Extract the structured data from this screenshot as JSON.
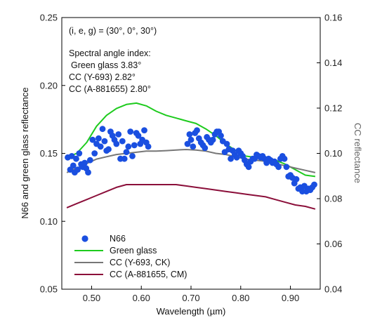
{
  "chart_data": {
    "type": "line",
    "xlabel": "Wavelength (µm)",
    "ylabel": "N66 and green glass reflectance",
    "y2label": "CC reflectance",
    "xlim": [
      0.44,
      0.96
    ],
    "ylim": [
      0.05,
      0.25
    ],
    "y2lim": [
      0.04,
      0.16
    ],
    "xticks": [
      "0.50",
      "0.60",
      "0.70",
      "0.80",
      "0.90"
    ],
    "yticks": [
      "0.05",
      "0.10",
      "0.15",
      "0.20",
      "0.25"
    ],
    "y2ticks": [
      "0.04",
      "0.06",
      "0.08",
      "0.10",
      "0.12",
      "0.14",
      "0.16"
    ],
    "grid": false,
    "legend_position": "bottom-left",
    "annotation": {
      "geometry": "(i, e, g) = (30°, 0°, 30°)",
      "title": "Spectral angle index:",
      "lines": [
        "Green glass 3.83°",
        "CC (Y-693) 2.82°",
        "CC (A-881655) 2.80°"
      ]
    },
    "series": [
      {
        "name": "N66",
        "kind": "scatter",
        "axis": "left",
        "color": "#1a4fe0",
        "points": [
          [
            0.452,
            0.147
          ],
          [
            0.457,
            0.138
          ],
          [
            0.46,
            0.148
          ],
          [
            0.463,
            0.141
          ],
          [
            0.466,
            0.136
          ],
          [
            0.469,
            0.146
          ],
          [
            0.472,
            0.138
          ],
          [
            0.475,
            0.15
          ],
          [
            0.479,
            0.142
          ],
          [
            0.482,
            0.14
          ],
          [
            0.486,
            0.143
          ],
          [
            0.489,
            0.139
          ],
          [
            0.493,
            0.136
          ],
          [
            0.497,
            0.145
          ],
          [
            0.502,
            0.16
          ],
          [
            0.506,
            0.15
          ],
          [
            0.51,
            0.157
          ],
          [
            0.514,
            0.161
          ],
          [
            0.518,
            0.155
          ],
          [
            0.522,
            0.168
          ],
          [
            0.526,
            0.159
          ],
          [
            0.53,
            0.152
          ],
          [
            0.534,
            0.153
          ],
          [
            0.538,
            0.166
          ],
          [
            0.542,
            0.163
          ],
          [
            0.546,
            0.16
          ],
          [
            0.55,
            0.157
          ],
          [
            0.554,
            0.164
          ],
          [
            0.558,
            0.146
          ],
          [
            0.562,
            0.159
          ],
          [
            0.566,
            0.146
          ],
          [
            0.57,
            0.151
          ],
          [
            0.574,
            0.155
          ],
          [
            0.578,
            0.166
          ],
          [
            0.582,
            0.148
          ],
          [
            0.586,
            0.156
          ],
          [
            0.59,
            0.165
          ],
          [
            0.594,
            0.163
          ],
          [
            0.598,
            0.157
          ],
          [
            0.602,
            0.16
          ],
          [
            0.606,
            0.167
          ],
          [
            0.61,
            0.158
          ],
          [
            0.614,
            0.155
          ],
          [
            0.693,
            0.157
          ],
          [
            0.697,
            0.164
          ],
          [
            0.7,
            0.16
          ],
          [
            0.704,
            0.155
          ],
          [
            0.708,
            0.165
          ],
          [
            0.712,
            0.167
          ],
          [
            0.716,
            0.161
          ],
          [
            0.72,
            0.158
          ],
          [
            0.724,
            0.156
          ],
          [
            0.728,
            0.154
          ],
          [
            0.732,
            0.162
          ],
          [
            0.736,
            0.16
          ],
          [
            0.74,
            0.158
          ],
          [
            0.744,
            0.16
          ],
          [
            0.748,
            0.164
          ],
          [
            0.752,
            0.166
          ],
          [
            0.756,
            0.166
          ],
          [
            0.76,
            0.163
          ],
          [
            0.764,
            0.159
          ],
          [
            0.768,
            0.151
          ],
          [
            0.772,
            0.157
          ],
          [
            0.776,
            0.153
          ],
          [
            0.78,
            0.146
          ],
          [
            0.784,
            0.152
          ],
          [
            0.788,
            0.149
          ],
          [
            0.792,
            0.147
          ],
          [
            0.796,
            0.152
          ],
          [
            0.8,
            0.15
          ],
          [
            0.804,
            0.148
          ],
          [
            0.808,
            0.145
          ],
          [
            0.812,
            0.142
          ],
          [
            0.816,
            0.14
          ],
          [
            0.82,
            0.144
          ],
          [
            0.824,
            0.146
          ],
          [
            0.828,
            0.146
          ],
          [
            0.832,
            0.149
          ],
          [
            0.836,
            0.148
          ],
          [
            0.84,
            0.147
          ],
          [
            0.844,
            0.148
          ],
          [
            0.848,
            0.146
          ],
          [
            0.852,
            0.143
          ],
          [
            0.856,
            0.146
          ],
          [
            0.86,
            0.145
          ],
          [
            0.864,
            0.143
          ],
          [
            0.868,
            0.144
          ],
          [
            0.872,
            0.142
          ],
          [
            0.876,
            0.14
          ],
          [
            0.88,
            0.146
          ],
          [
            0.884,
            0.148
          ],
          [
            0.888,
            0.146
          ],
          [
            0.892,
            0.14
          ],
          [
            0.896,
            0.133
          ],
          [
            0.9,
            0.134
          ],
          [
            0.904,
            0.132
          ],
          [
            0.908,
            0.128
          ],
          [
            0.912,
            0.131
          ],
          [
            0.916,
            0.124
          ],
          [
            0.92,
            0.125
          ],
          [
            0.924,
            0.122
          ],
          [
            0.928,
            0.126
          ],
          [
            0.932,
            0.122
          ],
          [
            0.936,
            0.124
          ],
          [
            0.94,
            0.123
          ],
          [
            0.944,
            0.125
          ],
          [
            0.948,
            0.127
          ]
        ]
      },
      {
        "name": "Green glass",
        "kind": "line",
        "axis": "left",
        "color": "#1ecb1e",
        "points": [
          [
            0.45,
            0.147
          ],
          [
            0.47,
            0.15
          ],
          [
            0.49,
            0.158
          ],
          [
            0.51,
            0.17
          ],
          [
            0.53,
            0.178
          ],
          [
            0.55,
            0.183
          ],
          [
            0.57,
            0.186
          ],
          [
            0.59,
            0.187
          ],
          [
            0.61,
            0.185
          ],
          [
            0.63,
            0.181
          ],
          [
            0.65,
            0.178
          ],
          [
            0.67,
            0.176
          ],
          [
            0.69,
            0.174
          ],
          [
            0.71,
            0.172
          ],
          [
            0.73,
            0.168
          ],
          [
            0.75,
            0.163
          ],
          [
            0.77,
            0.157
          ],
          [
            0.79,
            0.152
          ],
          [
            0.81,
            0.148
          ],
          [
            0.83,
            0.147
          ],
          [
            0.85,
            0.147
          ],
          [
            0.87,
            0.145
          ],
          [
            0.89,
            0.142
          ],
          [
            0.91,
            0.138
          ],
          [
            0.93,
            0.134
          ],
          [
            0.95,
            0.133
          ]
        ]
      },
      {
        "name": "CC (Y-693, CK)",
        "kind": "line",
        "axis": "right",
        "color": "#777777",
        "points": [
          [
            0.45,
            0.0915
          ],
          [
            0.47,
            0.0935
          ],
          [
            0.49,
            0.0955
          ],
          [
            0.51,
            0.0975
          ],
          [
            0.53,
            0.0985
          ],
          [
            0.55,
            0.0995
          ],
          [
            0.57,
            0.1
          ],
          [
            0.59,
            0.1005
          ],
          [
            0.61,
            0.101
          ],
          [
            0.63,
            0.101
          ],
          [
            0.65,
            0.1012
          ],
          [
            0.67,
            0.1015
          ],
          [
            0.69,
            0.1017
          ],
          [
            0.71,
            0.1015
          ],
          [
            0.73,
            0.101
          ],
          [
            0.75,
            0.1
          ],
          [
            0.77,
            0.0995
          ],
          [
            0.79,
            0.0985
          ],
          [
            0.81,
            0.0975
          ],
          [
            0.83,
            0.097
          ],
          [
            0.85,
            0.0965
          ],
          [
            0.87,
            0.0955
          ],
          [
            0.89,
            0.0945
          ],
          [
            0.91,
            0.0935
          ],
          [
            0.93,
            0.0925
          ],
          [
            0.95,
            0.0915
          ]
        ]
      },
      {
        "name": "CC (A-881655, CM)",
        "kind": "line",
        "axis": "left",
        "color": "#8b0f3a",
        "points": [
          [
            0.45,
            0.11
          ],
          [
            0.47,
            0.113
          ],
          [
            0.49,
            0.116
          ],
          [
            0.51,
            0.119
          ],
          [
            0.53,
            0.122
          ],
          [
            0.55,
            0.125
          ],
          [
            0.57,
            0.127
          ],
          [
            0.59,
            0.127
          ],
          [
            0.61,
            0.127
          ],
          [
            0.63,
            0.127
          ],
          [
            0.65,
            0.127
          ],
          [
            0.67,
            0.127
          ],
          [
            0.69,
            0.126
          ],
          [
            0.71,
            0.125
          ],
          [
            0.73,
            0.124
          ],
          [
            0.75,
            0.123
          ],
          [
            0.77,
            0.122
          ],
          [
            0.79,
            0.121
          ],
          [
            0.81,
            0.12
          ],
          [
            0.83,
            0.119
          ],
          [
            0.85,
            0.118
          ],
          [
            0.87,
            0.116
          ],
          [
            0.89,
            0.114
          ],
          [
            0.91,
            0.112
          ],
          [
            0.93,
            0.111
          ],
          [
            0.95,
            0.109
          ]
        ]
      }
    ]
  }
}
